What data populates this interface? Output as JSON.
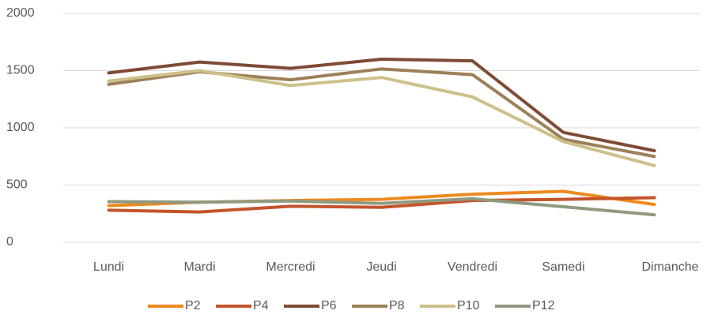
{
  "chart_data": {
    "type": "line",
    "categories": [
      "Lundi",
      "Mardi",
      "Mercredi",
      "Jeudi",
      "Vendredi",
      "Samedi",
      "Dimanche"
    ],
    "series": [
      {
        "name": "P2",
        "color": "#ed8a1f",
        "values": [
          320,
          350,
          365,
          375,
          420,
          445,
          330
        ]
      },
      {
        "name": "P4",
        "color": "#c4542a",
        "values": [
          280,
          265,
          315,
          305,
          365,
          375,
          390
        ]
      },
      {
        "name": "P6",
        "color": "#7e4b35",
        "values": [
          1480,
          1575,
          1520,
          1600,
          1585,
          960,
          800
        ]
      },
      {
        "name": "P8",
        "color": "#9d8058",
        "values": [
          1380,
          1490,
          1420,
          1515,
          1465,
          900,
          750
        ]
      },
      {
        "name": "P10",
        "color": "#cdc089",
        "values": [
          1410,
          1500,
          1370,
          1440,
          1270,
          880,
          670
        ]
      },
      {
        "name": "P12",
        "color": "#8f9a80",
        "values": [
          355,
          350,
          360,
          340,
          380,
          310,
          240
        ]
      }
    ],
    "ylim": [
      0,
      2000
    ],
    "yticks": [
      0,
      500,
      1000,
      1500,
      2000
    ],
    "grid": true,
    "legend": "bottom"
  }
}
